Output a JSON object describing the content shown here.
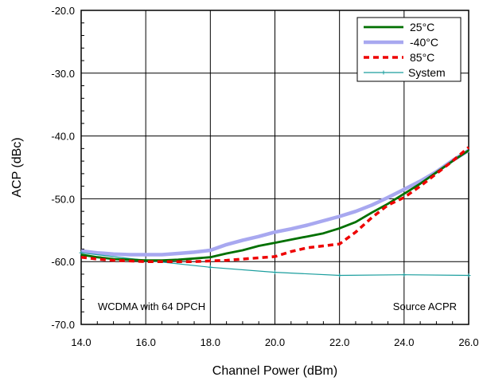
{
  "chart_data": {
    "type": "line",
    "title": "",
    "xlabel": "Channel Power (dBm)",
    "ylabel": "ACP (dBc)",
    "xlim": [
      14.0,
      26.0
    ],
    "ylim": [
      -70.0,
      -20.0
    ],
    "x_ticks": [
      "14.0",
      "16.0",
      "18.0",
      "20.0",
      "22.0",
      "24.0",
      "26.0"
    ],
    "y_ticks": [
      "-20.0",
      "-30.0",
      "-40.0",
      "-50.0",
      "-60.0",
      "-70.0"
    ],
    "x_tick_values": [
      14,
      16,
      18,
      20,
      22,
      24,
      26
    ],
    "y_tick_values": [
      -20,
      -30,
      -40,
      -50,
      -60,
      -70
    ],
    "grid": true,
    "legend_position": "top-right",
    "annotations": {
      "left": "WCDMA with 64 DPCH",
      "right": "Source ACPR"
    },
    "series": [
      {
        "name": "25°C",
        "color": "#007000",
        "style": "solid",
        "x": [
          14.0,
          14.5,
          15.0,
          15.5,
          16.0,
          16.5,
          17.0,
          17.5,
          18.0,
          18.5,
          19.0,
          19.5,
          20.0,
          20.5,
          21.0,
          21.5,
          22.0,
          22.5,
          23.0,
          23.5,
          24.0,
          24.5,
          25.0,
          25.5,
          26.0
        ],
        "y": [
          -58.9,
          -59.3,
          -59.6,
          -59.7,
          -59.8,
          -59.8,
          -59.7,
          -59.5,
          -59.3,
          -58.7,
          -58.2,
          -57.5,
          -57.0,
          -56.5,
          -56.0,
          -55.5,
          -54.7,
          -53.7,
          -52.2,
          -50.8,
          -49.2,
          -47.6,
          -45.8,
          -44.0,
          -42.3
        ]
      },
      {
        "name": "-40°C",
        "color": "#a8a8f0",
        "style": "solid",
        "x": [
          14.0,
          14.5,
          15.0,
          15.5,
          16.0,
          16.5,
          17.0,
          17.5,
          18.0,
          18.5,
          19.0,
          19.5,
          20.0,
          20.5,
          21.0,
          21.5,
          22.0,
          22.5,
          23.0,
          23.5,
          24.0,
          24.5,
          25.0,
          25.5,
          26.0
        ],
        "y": [
          -58.3,
          -58.6,
          -58.8,
          -58.9,
          -58.9,
          -58.9,
          -58.7,
          -58.5,
          -58.2,
          -57.3,
          -56.6,
          -56.0,
          -55.3,
          -54.8,
          -54.2,
          -53.5,
          -52.8,
          -52.0,
          -51.0,
          -49.8,
          -48.5,
          -47.2,
          -45.7,
          -43.9,
          -42.3
        ]
      },
      {
        "name": "85°C",
        "color": "#ee0000",
        "style": "dashed",
        "x": [
          14.0,
          14.5,
          15.0,
          15.5,
          16.0,
          16.5,
          17.0,
          17.5,
          18.0,
          18.5,
          19.0,
          19.5,
          20.0,
          20.5,
          21.0,
          21.5,
          22.0,
          22.5,
          23.0,
          23.5,
          24.0,
          24.5,
          25.0,
          25.5,
          26.0
        ],
        "y": [
          -59.3,
          -59.6,
          -59.8,
          -59.9,
          -60.0,
          -60.0,
          -60.0,
          -60.0,
          -59.9,
          -59.8,
          -59.6,
          -59.4,
          -59.2,
          -58.4,
          -57.8,
          -57.5,
          -57.2,
          -55.3,
          -53.0,
          -51.0,
          -49.8,
          -48.0,
          -46.0,
          -44.0,
          -41.8
        ]
      },
      {
        "name": "System",
        "color": "#1b9e9e",
        "style": "solid-thin",
        "x": [
          14.0,
          16.0,
          18.0,
          20.0,
          22.0,
          24.0,
          26.0
        ],
        "y": [
          -58.6,
          -59.8,
          -60.9,
          -61.7,
          -62.2,
          -62.1,
          -62.2
        ]
      }
    ]
  }
}
